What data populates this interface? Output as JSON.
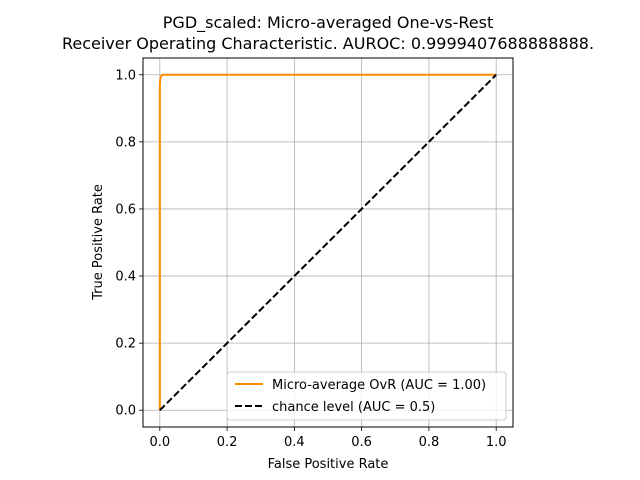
{
  "chart_data": {
    "type": "line",
    "title_line1": "PGD_scaled: Micro-averaged One-vs-Rest",
    "title_line2": "Receiver Operating Characteristic. AUROC: 0.9999407688888888.",
    "xlabel": "False Positive Rate",
    "ylabel": "True Positive Rate",
    "xlim": [
      -0.05,
      1.05
    ],
    "ylim": [
      -0.05,
      1.05
    ],
    "xticks": [
      0.0,
      0.2,
      0.4,
      0.6,
      0.8,
      1.0
    ],
    "yticks": [
      0.0,
      0.2,
      0.4,
      0.6,
      0.8,
      1.0
    ],
    "xtick_labels": [
      "0.0",
      "0.2",
      "0.4",
      "0.6",
      "0.8",
      "1.0"
    ],
    "ytick_labels": [
      "0.0",
      "0.2",
      "0.4",
      "0.6",
      "0.8",
      "1.0"
    ],
    "grid": true,
    "legend_position": "lower-right",
    "series": [
      {
        "name": "Micro-average OvR (AUC = 1.00)",
        "color": "#ff8c00",
        "dash": "solid",
        "x": [
          0.0,
          0.0,
          0.001,
          0.003,
          0.006,
          0.01,
          1.0
        ],
        "y": [
          0.0,
          0.96,
          0.985,
          0.995,
          0.999,
          1.0,
          1.0
        ]
      },
      {
        "name": "chance level (AUC = 0.5)",
        "color": "#000000",
        "dash": "dashed",
        "x": [
          0.0,
          1.0
        ],
        "y": [
          0.0,
          1.0
        ]
      }
    ]
  }
}
